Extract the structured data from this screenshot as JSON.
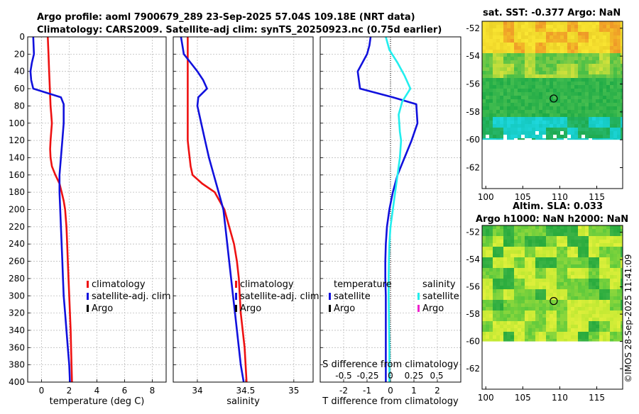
{
  "titles": {
    "line1": "Argo profile: aoml 7900679_289 23-Sep-2025 57.04S 109.18E (NRT data)",
    "line2": "Climatology: CARS2009. Satellite-adj clim: synTS_20250923.nc (0.75d earlier)"
  },
  "colors": {
    "climatology": "#ee1111",
    "satellite": "#1111dd",
    "salinity_sat": "#22eeee",
    "argo": "#000000",
    "argo_sal": "#ee22cc"
  },
  "chart_data": [
    {
      "type": "line",
      "id": "temperature",
      "xlabel": "temperature (deg C)",
      "ylabel": "",
      "xlim": [
        -1,
        9
      ],
      "ylim": [
        400,
        0
      ],
      "xticks": [
        0,
        2,
        4,
        6,
        8
      ],
      "yticks": [
        0,
        20,
        40,
        60,
        80,
        100,
        120,
        140,
        160,
        180,
        200,
        220,
        240,
        260,
        280,
        300,
        320,
        340,
        360,
        380,
        400
      ],
      "grid": true,
      "legend": {
        "position": "bottom-right",
        "entries": [
          "climatology",
          "satellite-adj. clim",
          "Argo"
        ]
      },
      "series": [
        {
          "name": "climatology",
          "color": "climatology",
          "x": [
            0.45,
            0.5,
            0.55,
            0.6,
            0.65,
            0.7,
            0.75,
            0.65,
            0.62,
            0.65,
            0.75,
            1.0,
            1.3,
            1.45,
            1.6,
            1.7,
            1.8,
            1.85,
            1.9,
            1.95,
            2.0,
            2.05,
            2.1,
            2.15,
            2.2
          ],
          "y": [
            0,
            20,
            40,
            60,
            80,
            90,
            100,
            120,
            130,
            140,
            150,
            160,
            170,
            180,
            190,
            200,
            220,
            240,
            260,
            280,
            300,
            320,
            340,
            370,
            400
          ]
        },
        {
          "name": "satellite-adj. clim",
          "color": "satellite",
          "x": [
            -0.6,
            -0.55,
            -0.7,
            -0.8,
            -0.75,
            -0.6,
            1.4,
            1.6,
            1.6,
            1.5,
            1.4,
            1.3,
            1.3,
            1.35,
            1.4,
            1.45,
            1.5,
            1.55,
            1.6,
            1.7,
            1.8,
            1.9,
            2.0,
            2.05
          ],
          "y": [
            0,
            20,
            30,
            40,
            50,
            60,
            70,
            78,
            100,
            120,
            140,
            160,
            180,
            200,
            220,
            240,
            260,
            280,
            300,
            320,
            340,
            360,
            380,
            400
          ]
        }
      ]
    },
    {
      "type": "line",
      "id": "salinity",
      "xlabel": "salinity",
      "ylabel": "",
      "xlim": [
        33.75,
        35.2
      ],
      "ylim": [
        400,
        0
      ],
      "xticks": [
        34,
        34.5,
        35
      ],
      "yticks": [
        0,
        20,
        40,
        60,
        80,
        100,
        120,
        140,
        160,
        180,
        200,
        220,
        240,
        260,
        280,
        300,
        320,
        340,
        360,
        380,
        400
      ],
      "grid": true,
      "legend": {
        "position": "bottom-right",
        "entries": [
          "climatology",
          "satellite-adj. clim",
          "Argo"
        ]
      },
      "series": [
        {
          "name": "climatology",
          "color": "climatology",
          "x": [
            33.9,
            33.9,
            33.9,
            33.9,
            33.9,
            33.9,
            33.9,
            33.91,
            33.92,
            33.93,
            33.95,
            34.05,
            34.18,
            34.28,
            34.33,
            34.38,
            34.41,
            34.43,
            34.44,
            34.45,
            34.47,
            34.49,
            34.5,
            34.51
          ],
          "y": [
            0,
            20,
            40,
            60,
            80,
            100,
            120,
            130,
            140,
            150,
            160,
            170,
            180,
            200,
            220,
            240,
            260,
            280,
            300,
            320,
            340,
            360,
            380,
            400
          ]
        },
        {
          "name": "satellite-adj. clim",
          "color": "satellite",
          "x": [
            33.83,
            33.86,
            33.93,
            34.0,
            34.06,
            34.1,
            34.01,
            34.0,
            34.04,
            34.08,
            34.12,
            34.17,
            34.22,
            34.27,
            34.29,
            34.31,
            34.33,
            34.35,
            34.37,
            34.39,
            34.41,
            34.43,
            34.45,
            34.48
          ],
          "y": [
            0,
            20,
            30,
            40,
            50,
            60,
            70,
            80,
            100,
            120,
            140,
            160,
            180,
            200,
            220,
            240,
            260,
            280,
            300,
            320,
            340,
            360,
            380,
            400
          ]
        }
      ]
    },
    {
      "type": "line",
      "id": "difference",
      "xlabel": "T difference from climatology",
      "xlabel_top": "S difference from climatology",
      "xlim": [
        -3,
        3
      ],
      "ylim": [
        400,
        0
      ],
      "xticks": [
        -2,
        -1,
        0,
        1,
        2
      ],
      "xticks_top": [
        "-0.5",
        "-0.25",
        "0",
        "0.25",
        "0.5"
      ],
      "yticks": [
        0,
        20,
        40,
        60,
        80,
        100,
        120,
        140,
        160,
        180,
        200,
        220,
        240,
        260,
        280,
        300,
        320,
        340,
        360,
        380,
        400
      ],
      "grid": true,
      "legend_temperature": {
        "title": "temperature",
        "entries": [
          "satellite",
          "Argo"
        ]
      },
      "legend_salinity": {
        "title": "salinity",
        "entries": [
          "satellite",
          "Argo"
        ]
      },
      "series": [
        {
          "name": "temperature satellite",
          "color": "satellite",
          "x": [
            -0.85,
            -0.9,
            -1.0,
            -1.2,
            -1.4,
            -1.3,
            0.1,
            1.1,
            1.15,
            0.9,
            0.6,
            0.3,
            0.1,
            -0.05,
            -0.15,
            -0.2,
            -0.22,
            -0.22,
            -0.2,
            -0.2,
            -0.2,
            -0.2,
            -0.2,
            -0.2
          ],
          "y": [
            0,
            10,
            20,
            30,
            40,
            60,
            70,
            78,
            100,
            120,
            140,
            160,
            180,
            200,
            220,
            240,
            260,
            280,
            300,
            320,
            340,
            360,
            380,
            400
          ]
        },
        {
          "name": "salinity satellite",
          "color": "salinity_sat",
          "x": [
            -0.2,
            -0.05,
            0.3,
            0.6,
            0.85,
            0.5,
            0.35,
            0.4,
            0.45,
            0.4,
            0.3,
            0.2,
            0.1,
            0.0,
            -0.05,
            -0.07,
            -0.08,
            -0.08,
            -0.07,
            -0.06,
            -0.05,
            -0.05,
            -0.05
          ],
          "y": [
            0,
            15,
            30,
            45,
            60,
            75,
            90,
            110,
            120,
            140,
            160,
            180,
            200,
            220,
            240,
            260,
            280,
            300,
            320,
            340,
            360,
            380,
            400
          ]
        }
      ]
    },
    {
      "type": "heatmap",
      "id": "sst_map",
      "title": "sat. SST: -0.377 Argo: NaN",
      "xlim": [
        99.5,
        118.5
      ],
      "ylim": [
        -63.5,
        -51.5
      ],
      "xticks": [
        100,
        105,
        110,
        115
      ],
      "yticks": [
        -52,
        -54,
        -56,
        -58,
        -60,
        -62
      ],
      "marker": {
        "lon": 109.18,
        "lat": -57.04
      }
    },
    {
      "type": "heatmap",
      "id": "sla_map",
      "title": "Altim. SLA: 0.033",
      "subtitle": "Argo h1000: NaN h2000: NaN",
      "xlim": [
        99.5,
        118.5
      ],
      "ylim": [
        -63.5,
        -51.5
      ],
      "xticks": [
        100,
        105,
        110,
        115
      ],
      "yticks": [
        -52,
        -54,
        -56,
        -58,
        -60,
        -62
      ],
      "marker": {
        "lon": 109.18,
        "lat": -57.04
      }
    }
  ],
  "watermark": "©IMOS 28-Sep-2025 11:41:09"
}
